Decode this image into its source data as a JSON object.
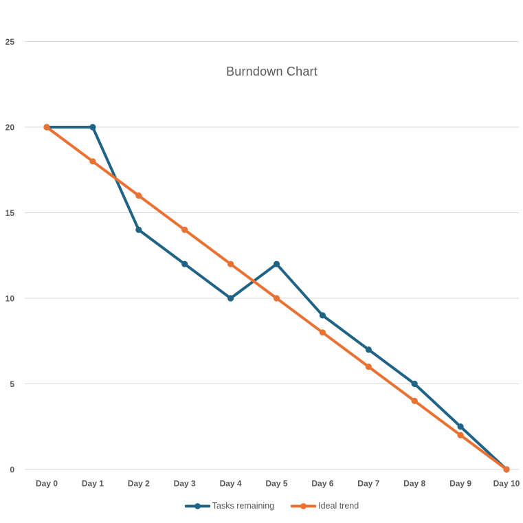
{
  "chart_data": {
    "type": "line",
    "title": "Burndown Chart",
    "categories": [
      "Day 0",
      "Day 1",
      "Day 2",
      "Day 3",
      "Day 4",
      "Day 5",
      "Day 6",
      "Day 7",
      "Day 8",
      "Day 9",
      "Day 10"
    ],
    "series": [
      {
        "name": "Tasks remaining",
        "values": [
          20,
          20,
          14,
          12,
          10,
          12,
          9,
          7,
          5,
          2.5,
          0
        ],
        "color": "#1F6386"
      },
      {
        "name": "Ideal trend",
        "values": [
          20,
          18,
          16,
          14,
          12,
          10,
          8,
          6,
          4,
          2,
          0
        ],
        "color": "#E97132"
      }
    ],
    "y_ticks": [
      0,
      5,
      10,
      15,
      20,
      25
    ],
    "ylim": [
      0,
      25
    ],
    "xlabel": "",
    "ylabel": "",
    "grid": "horizontal-only",
    "legend_position": "bottom-center",
    "colors": {
      "gridline": "#D9D9D9",
      "tick_text": "#595959",
      "title_text": "#595959",
      "legend_text": "#595959",
      "background": "#FFFFFF"
    }
  }
}
